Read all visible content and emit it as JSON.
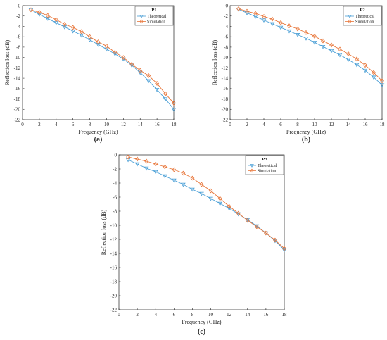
{
  "chart_data": [
    {
      "type": "line",
      "panel_label": "(a)",
      "legend_title": "P1",
      "xlabel": "Frequency (GHz)",
      "ylabel": "Reflection loss (dB)",
      "xlim": [
        0,
        18
      ],
      "ylim": [
        -22,
        0
      ],
      "xticks": [
        0,
        2,
        4,
        6,
        8,
        10,
        12,
        14,
        16,
        18
      ],
      "yticks": [
        0,
        -2,
        -4,
        -6,
        -8,
        -10,
        -12,
        -14,
        -16,
        -18,
        -20,
        -22
      ],
      "legend_position": "top-right",
      "x": [
        1,
        2,
        3,
        4,
        5,
        6,
        7,
        8,
        9,
        10,
        11,
        12,
        13,
        14,
        15,
        16,
        17,
        18
      ],
      "series": [
        {
          "name": "Theoretical",
          "color": "#4a9fd6",
          "marker": "triangle-down",
          "values": [
            -0.8,
            -1.7,
            -2.5,
            -3.3,
            -4.1,
            -4.9,
            -5.7,
            -6.6,
            -7.5,
            -8.4,
            -9.3,
            -10.3,
            -11.5,
            -12.9,
            -14.5,
            -16.2,
            -18.0,
            -20.0
          ]
        },
        {
          "name": "Simulation",
          "color": "#e8763a",
          "marker": "diamond",
          "values": [
            -0.8,
            -1.3,
            -1.9,
            -2.7,
            -3.6,
            -4.2,
            -5.0,
            -6.0,
            -7.0,
            -7.8,
            -9.0,
            -10.0,
            -11.3,
            -12.5,
            -13.5,
            -15.0,
            -17.0,
            -18.8
          ]
        }
      ]
    },
    {
      "type": "line",
      "panel_label": "(b)",
      "legend_title": "P2",
      "xlabel": "Frequency (GHz)",
      "ylabel": "Reflection loss (dB)",
      "xlim": [
        0,
        18
      ],
      "ylim": [
        -22,
        0
      ],
      "xticks": [
        0,
        2,
        4,
        6,
        8,
        10,
        12,
        14,
        16,
        18
      ],
      "yticks": [
        0,
        -2,
        -4,
        -6,
        -8,
        -10,
        -12,
        -14,
        -16,
        -18,
        -20,
        -22
      ],
      "legend_position": "top-right",
      "x": [
        1,
        2,
        3,
        4,
        5,
        6,
        7,
        8,
        9,
        10,
        11,
        12,
        13,
        14,
        15,
        16,
        17,
        18
      ],
      "series": [
        {
          "name": "Theoretical",
          "color": "#4a9fd6",
          "marker": "triangle-down",
          "values": [
            -0.7,
            -1.4,
            -2.1,
            -2.8,
            -3.5,
            -4.2,
            -4.9,
            -5.6,
            -6.3,
            -7.1,
            -7.9,
            -8.7,
            -9.5,
            -10.4,
            -11.4,
            -12.5,
            -13.8,
            -15.3
          ]
        },
        {
          "name": "Simulation",
          "color": "#e8763a",
          "marker": "diamond",
          "values": [
            -0.6,
            -1.1,
            -1.5,
            -2.1,
            -2.6,
            -3.3,
            -3.9,
            -4.5,
            -5.2,
            -5.9,
            -6.8,
            -7.6,
            -8.4,
            -9.3,
            -10.3,
            -11.5,
            -12.9,
            -14.5
          ]
        }
      ]
    },
    {
      "type": "line",
      "panel_label": "(c)",
      "legend_title": "P3",
      "xlabel": "Frequency (GHz)",
      "ylabel": "Reflection loss (dB)",
      "xlim": [
        0,
        18
      ],
      "ylim": [
        -22,
        0
      ],
      "xticks": [
        0,
        2,
        4,
        6,
        8,
        10,
        12,
        14,
        16,
        18
      ],
      "yticks": [
        0,
        -2,
        -4,
        -6,
        -8,
        -10,
        -12,
        -14,
        -16,
        -18,
        -20,
        -22
      ],
      "legend_position": "top-right",
      "x": [
        1,
        2,
        3,
        4,
        5,
        6,
        7,
        8,
        9,
        10,
        11,
        12,
        13,
        14,
        15,
        16,
        17,
        18
      ],
      "series": [
        {
          "name": "Theoretical",
          "color": "#4a9fd6",
          "marker": "triangle-down",
          "values": [
            -0.7,
            -1.3,
            -1.9,
            -2.4,
            -3.0,
            -3.6,
            -4.2,
            -4.9,
            -5.5,
            -6.2,
            -6.9,
            -7.6,
            -8.4,
            -9.2,
            -10.1,
            -11.1,
            -12.2,
            -13.5
          ]
        },
        {
          "name": "Simulation",
          "color": "#e8763a",
          "marker": "diamond",
          "values": [
            -0.3,
            -0.6,
            -0.9,
            -1.3,
            -1.7,
            -2.1,
            -2.6,
            -3.3,
            -4.2,
            -5.1,
            -6.2,
            -7.3,
            -8.3,
            -9.3,
            -10.2,
            -11.1,
            -12.1,
            -13.3
          ]
        }
      ]
    }
  ]
}
